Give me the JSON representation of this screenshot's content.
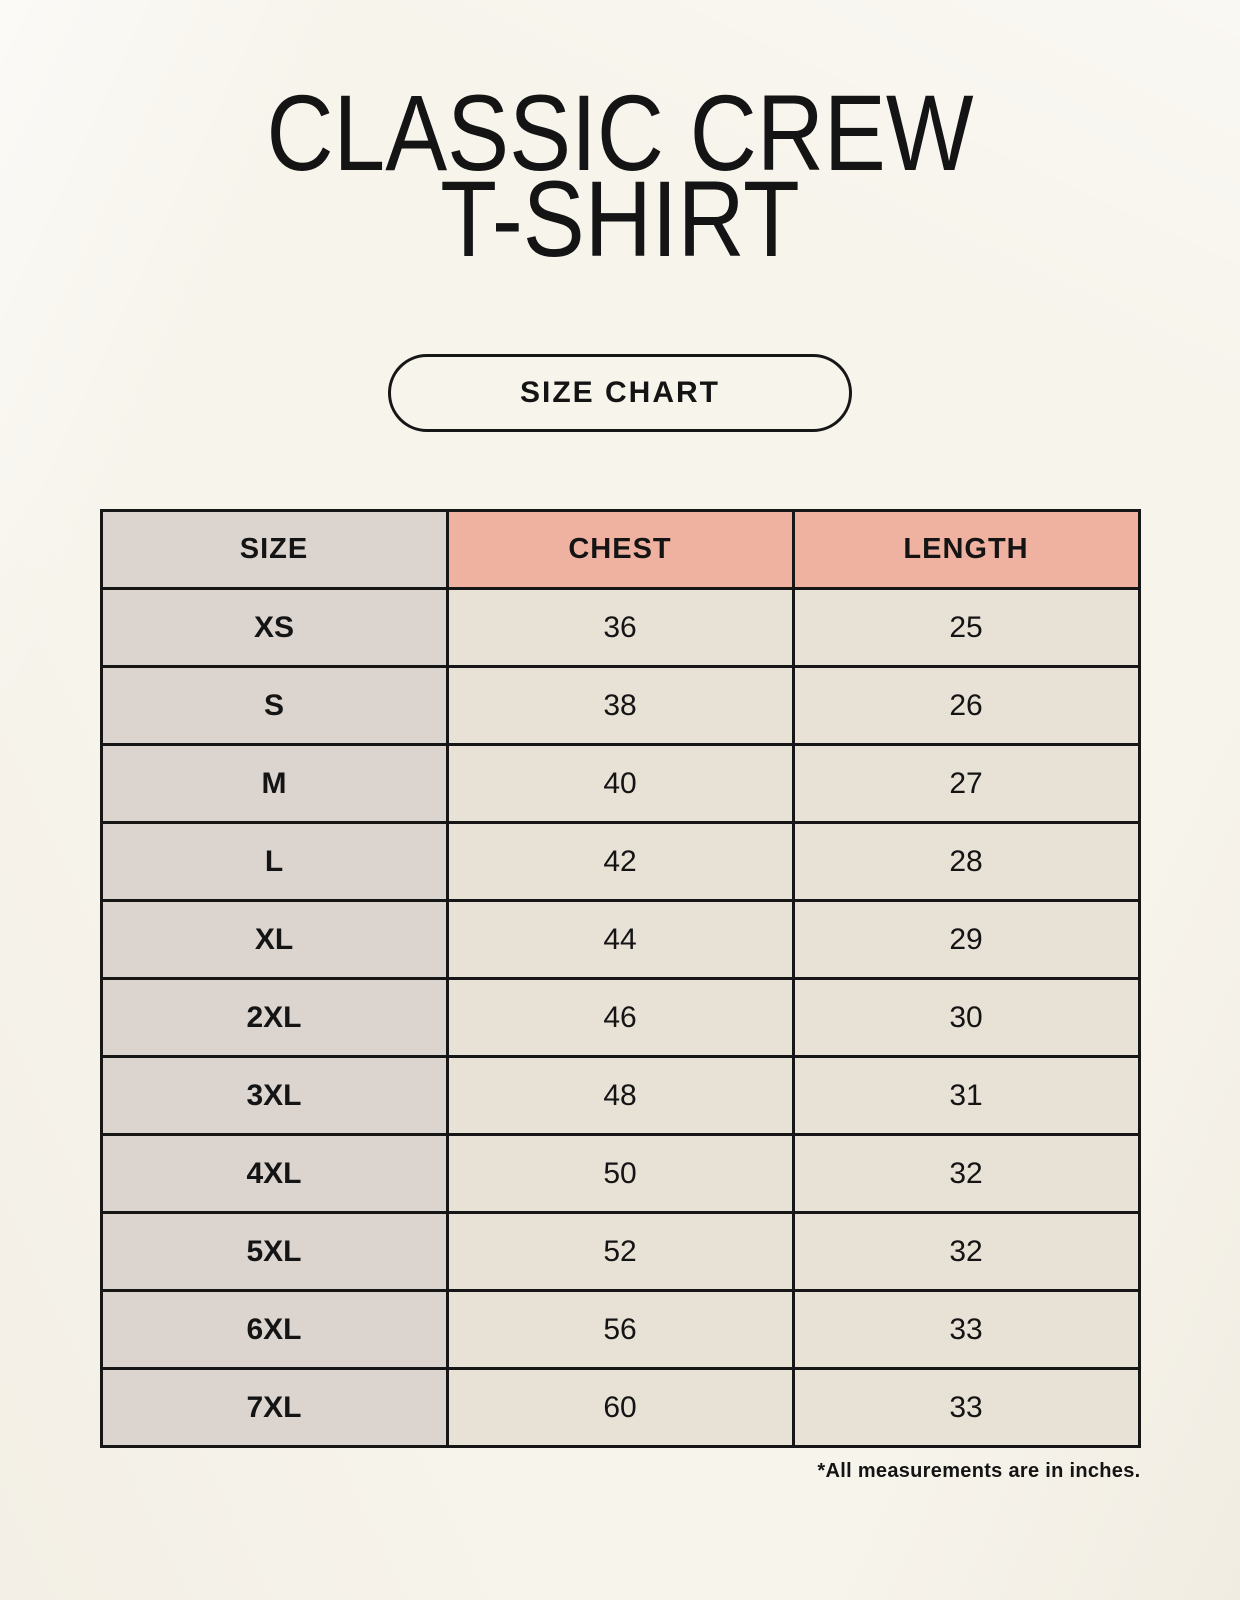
{
  "header": {
    "title_line1": "CLASSIC CREW",
    "title_line2": "T-SHIRT",
    "badge_label": "SIZE CHART"
  },
  "table": {
    "columns": [
      "SIZE",
      "CHEST",
      "LENGTH"
    ],
    "rows": [
      [
        "XS",
        "36",
        "25"
      ],
      [
        "S",
        "38",
        "26"
      ],
      [
        "M",
        "40",
        "27"
      ],
      [
        "L",
        "42",
        "28"
      ],
      [
        "XL",
        "44",
        "29"
      ],
      [
        "2XL",
        "46",
        "30"
      ],
      [
        "3XL",
        "48",
        "31"
      ],
      [
        "4XL",
        "50",
        "32"
      ],
      [
        "5XL",
        "52",
        "32"
      ],
      [
        "6XL",
        "56",
        "33"
      ],
      [
        "7XL",
        "60",
        "33"
      ]
    ],
    "units": "inches"
  },
  "footnote": "*All measurements are in inches.",
  "colors": {
    "page_background": "#f7f4ec",
    "header_pink": "#f0b2a0",
    "size_column_gray": "#dcd5cf",
    "cell_cream": "#e8e1d6",
    "border_black": "#161616",
    "text_black": "#141414"
  }
}
